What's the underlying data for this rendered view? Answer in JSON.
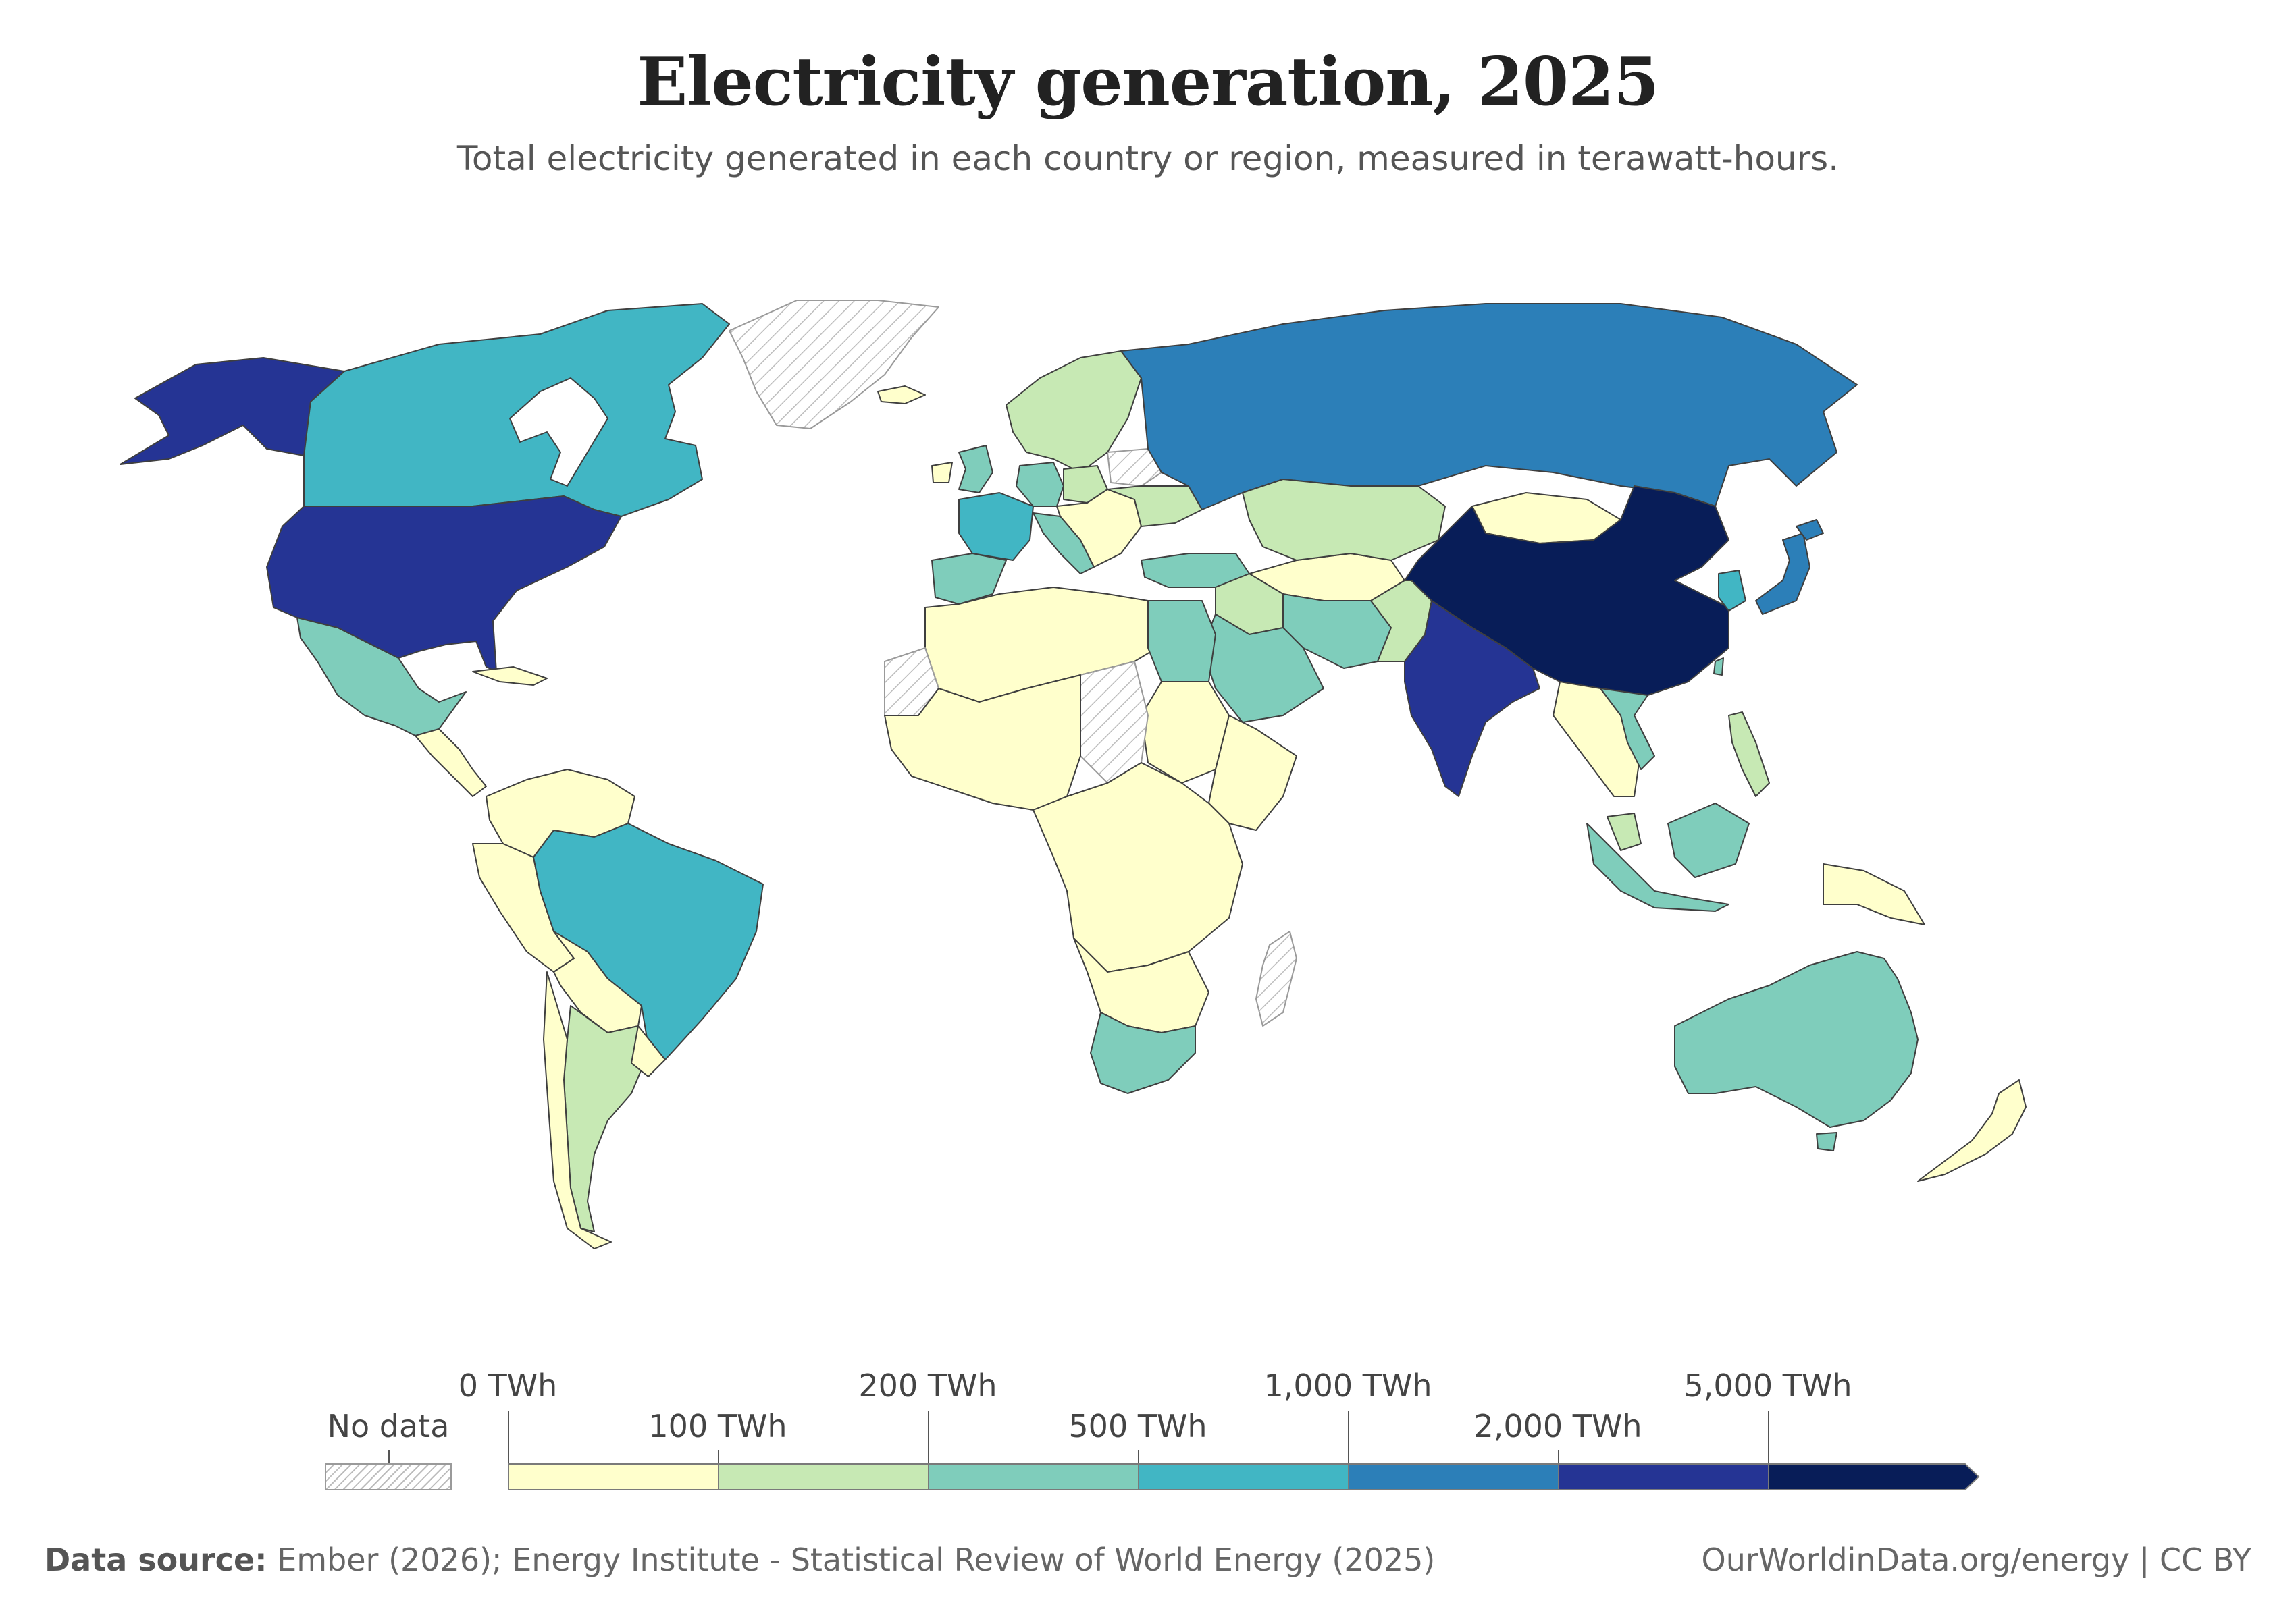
{
  "title": "Electricity generation, 2025",
  "subtitle": "Total electricity generated in each country or region, measured in terawatt-hours.",
  "legend": {
    "no_data_label": "No data",
    "ticks": [
      "0 TWh",
      "100 TWh",
      "200 TWh",
      "500 TWh",
      "1,000 TWh",
      "2,000 TWh",
      "5,000 TWh"
    ],
    "bins": [
      {
        "range": "0–100 TWh",
        "color": "#ffffcc"
      },
      {
        "range": "100–200 TWh",
        "color": "#c7e9b4"
      },
      {
        "range": "200–500 TWh",
        "color": "#7fcdbb"
      },
      {
        "range": "500–1,000 TWh",
        "color": "#41b6c4"
      },
      {
        "range": "1,000–2,000 TWh",
        "color": "#2c7fb8"
      },
      {
        "range": "2,000–5,000 TWh",
        "color": "#253494"
      },
      {
        "range": ">5,000 TWh",
        "color": "#081d58"
      }
    ]
  },
  "footer": {
    "source_label": "Data source:",
    "source_text": "Ember (2026); Energy Institute - Statistical Review of World Energy (2025)",
    "credit": "OurWorldinData.org/energy | CC BY"
  },
  "chart_data": {
    "type": "choropleth",
    "unit": "TWh",
    "year": 2025,
    "bin_edges": [
      0,
      100,
      200,
      500,
      1000,
      2000,
      5000
    ],
    "regions": [
      {
        "name": "China",
        "bin": "5,000+ TWh"
      },
      {
        "name": "United States",
        "bin": "2,000–5,000 TWh"
      },
      {
        "name": "India",
        "bin": "2,000–5,000 TWh"
      },
      {
        "name": "Russia",
        "bin": "1,000–2,000 TWh"
      },
      {
        "name": "Japan",
        "bin": "1,000–2,000 TWh"
      },
      {
        "name": "Canada",
        "bin": "500–1,000 TWh"
      },
      {
        "name": "Brazil",
        "bin": "500–1,000 TWh"
      },
      {
        "name": "South Korea",
        "bin": "500–1,000 TWh"
      },
      {
        "name": "France",
        "bin": "500–1,000 TWh"
      },
      {
        "name": "Mexico",
        "bin": "200–500 TWh"
      },
      {
        "name": "Germany",
        "bin": "200–500 TWh"
      },
      {
        "name": "Spain",
        "bin": "200–500 TWh"
      },
      {
        "name": "Italy",
        "bin": "200–500 TWh"
      },
      {
        "name": "United Kingdom",
        "bin": "200–500 TWh"
      },
      {
        "name": "Turkey",
        "bin": "200–500 TWh"
      },
      {
        "name": "Iran",
        "bin": "200–500 TWh"
      },
      {
        "name": "Saudi Arabia",
        "bin": "200–500 TWh"
      },
      {
        "name": "Egypt",
        "bin": "200–500 TWh"
      },
      {
        "name": "South Africa",
        "bin": "200–500 TWh"
      },
      {
        "name": "Australia",
        "bin": "200–500 TWh"
      },
      {
        "name": "Indonesia",
        "bin": "200–500 TWh"
      },
      {
        "name": "Vietnam",
        "bin": "200–500 TWh"
      },
      {
        "name": "Taiwan",
        "bin": "200–500 TWh"
      },
      {
        "name": "Argentina",
        "bin": "100–200 TWh"
      },
      {
        "name": "Kazakhstan",
        "bin": "100–200 TWh"
      },
      {
        "name": "Thailand",
        "bin": "100–200 TWh"
      },
      {
        "name": "Malaysia",
        "bin": "100–200 TWh"
      },
      {
        "name": "Poland",
        "bin": "100–200 TWh"
      },
      {
        "name": "Sweden",
        "bin": "100–200 TWh"
      },
      {
        "name": "Norway",
        "bin": "100–200 TWh"
      },
      {
        "name": "Ukraine",
        "bin": "100–200 TWh"
      },
      {
        "name": "Pakistan",
        "bin": "100–200 TWh"
      },
      {
        "name": "Philippines",
        "bin": "100–200 TWh"
      },
      {
        "name": "Iraq",
        "bin": "100–200 TWh"
      },
      {
        "name": "Mongolia",
        "bin": "0–100 TWh"
      },
      {
        "name": "Algeria",
        "bin": "0–100 TWh"
      },
      {
        "name": "Nigeria",
        "bin": "0–100 TWh"
      },
      {
        "name": "Sudan",
        "bin": "0–100 TWh"
      },
      {
        "name": "Peru",
        "bin": "0–100 TWh"
      },
      {
        "name": "Colombia",
        "bin": "0–100 TWh"
      },
      {
        "name": "Chile",
        "bin": "0–100 TWh"
      },
      {
        "name": "New Zealand",
        "bin": "0–100 TWh"
      },
      {
        "name": "Papua New Guinea",
        "bin": "0–100 TWh"
      },
      {
        "name": "Greenland",
        "bin": "No data"
      },
      {
        "name": "Western Sahara",
        "bin": "No data"
      },
      {
        "name": "Madagascar",
        "bin": "No data"
      },
      {
        "name": "Belarus",
        "bin": "No data"
      },
      {
        "name": "Chad",
        "bin": "No data"
      }
    ]
  }
}
